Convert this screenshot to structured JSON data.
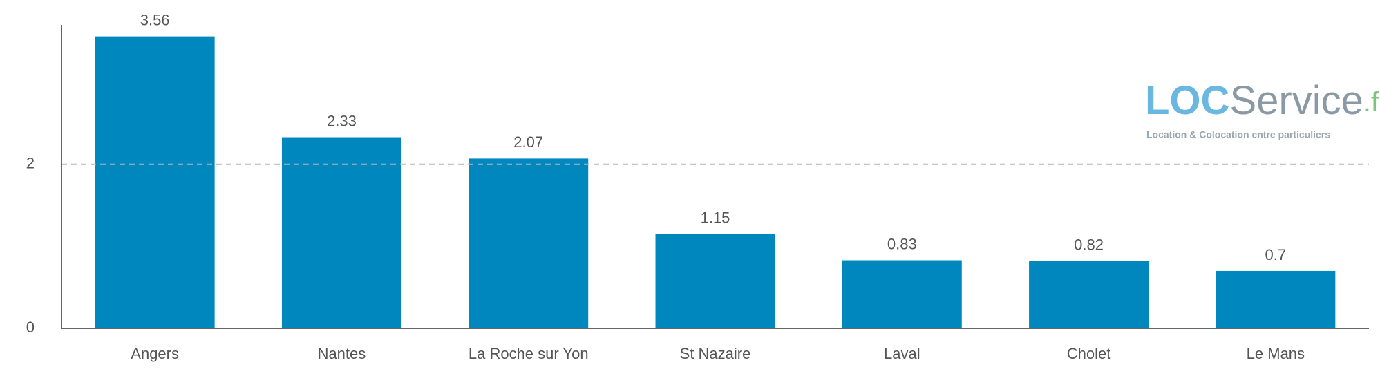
{
  "chart_data": {
    "type": "bar",
    "categories": [
      "Angers",
      "Nantes",
      "La Roche sur Yon",
      "St Nazaire",
      "Laval",
      "Cholet",
      "Le Mans"
    ],
    "values": [
      3.56,
      2.33,
      2.07,
      1.15,
      0.83,
      0.82,
      0.7
    ],
    "color": "#0087be",
    "ylim": [
      0,
      3.7
    ],
    "yticks": [
      0,
      2
    ],
    "grid": true,
    "watermark": {
      "brand_parts": [
        "LOC",
        "Service",
        ".fr"
      ],
      "tagline": "Location & Colocation entre particuliers"
    }
  }
}
